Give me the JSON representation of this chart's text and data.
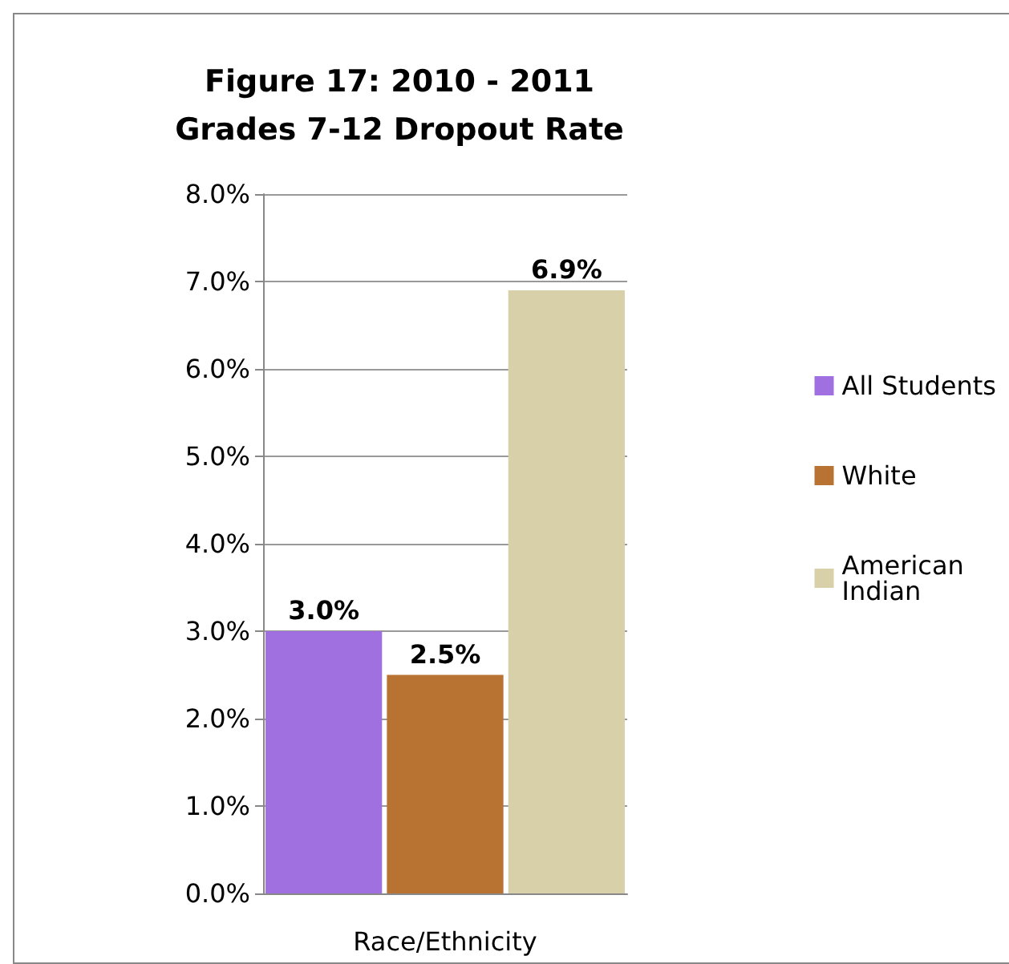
{
  "chart_data": {
    "type": "bar",
    "title": "Figure 17: 2010 - 2011\nGrades 7-12 Dropout Rate",
    "xlabel": "Race/Ethnicity",
    "categories": [
      null,
      null,
      null
    ],
    "stacked": true,
    "series": [
      {
        "name": "All Students",
        "color": "#a070e0",
        "values": [
          3.0,
          null,
          null
        ],
        "value_labels": [
          "3.0%",
          null,
          null
        ]
      },
      {
        "name": "White",
        "color": "#b87333",
        "values": [
          null,
          2.5,
          null
        ],
        "value_labels": [
          null,
          "2.5%",
          null
        ]
      },
      {
        "name": "American Indian",
        "color": "#d8d0a8",
        "values": [
          null,
          null,
          6.9
        ],
        "value_labels": [
          null,
          null,
          "6.9%"
        ]
      }
    ],
    "ylim": [
      0,
      8
    ],
    "yticks": [
      {
        "value": 0,
        "label": "0.0%"
      },
      {
        "value": 1,
        "label": "1.0%"
      },
      {
        "value": 2,
        "label": "2.0%"
      },
      {
        "value": 3,
        "label": "3.0%"
      },
      {
        "value": 4,
        "label": "4.0%"
      },
      {
        "value": 5,
        "label": "5.0%"
      },
      {
        "value": 6,
        "label": "6.0%"
      },
      {
        "value": 7,
        "label": "7.0%"
      },
      {
        "value": 8,
        "label": "8.0%"
      }
    ],
    "grid": "y",
    "legend": "right"
  }
}
